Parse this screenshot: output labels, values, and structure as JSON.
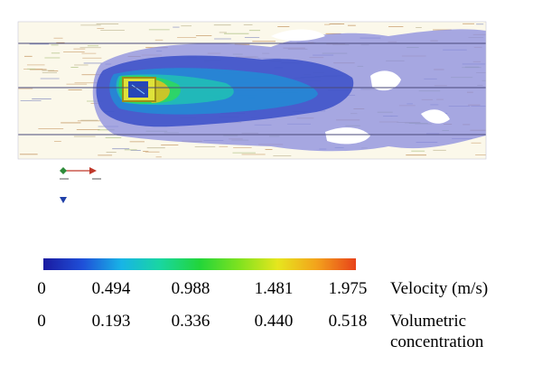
{
  "colorbar": {
    "colors": [
      "#1a1aa0",
      "#1f4fd8",
      "#18b4e6",
      "#19d6a0",
      "#22d53a",
      "#7ee21f",
      "#e6e61e",
      "#f3a21c",
      "#e8421a"
    ]
  },
  "scales": [
    {
      "ticks": [
        "0",
        "0.494",
        "0.988",
        "1.481",
        "1.975"
      ],
      "label_lines": [
        "Velocity (m/s)"
      ]
    },
    {
      "ticks": [
        "0",
        "0.193",
        "0.336",
        "0.440",
        "0.518"
      ],
      "label_lines": [
        "Volumetric",
        "concentration"
      ]
    }
  ]
}
